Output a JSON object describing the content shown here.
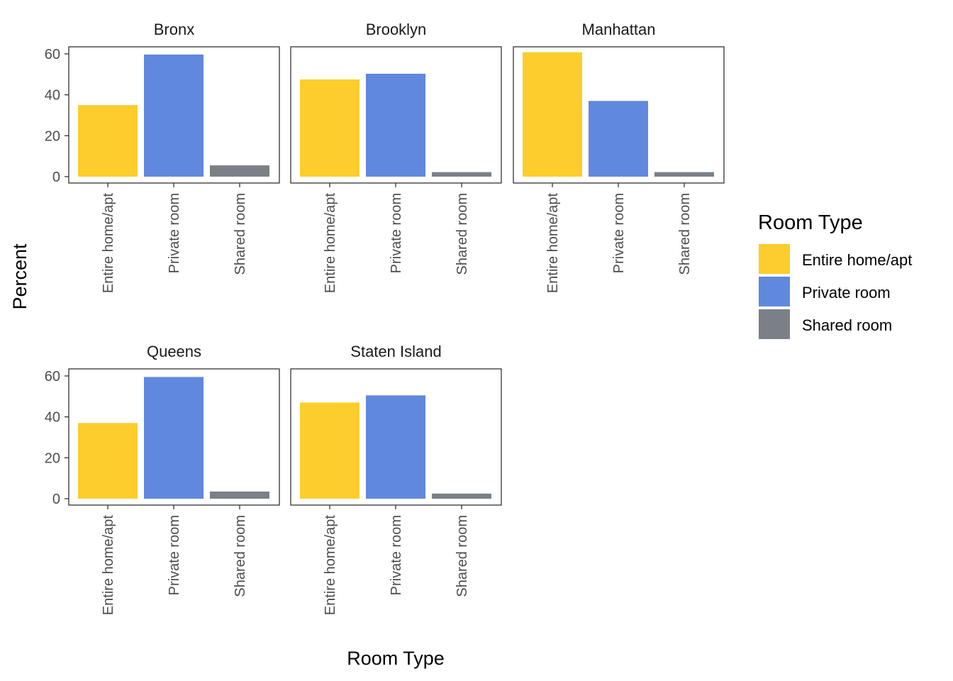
{
  "chart_data": {
    "type": "bar",
    "facet_by": "borough",
    "xlabel": "Room Type",
    "ylabel": "Percent",
    "ylim": [
      0,
      65
    ],
    "yticks": [
      0,
      20,
      40,
      60
    ],
    "categories": [
      "Entire home/apt",
      "Private room",
      "Shared room"
    ],
    "colors": {
      "Entire home/apt": "#FCCD2C",
      "Private room": "#6088DD",
      "Shared room": "#7B8087"
    },
    "legend": {
      "title": "Room Type",
      "position": "right",
      "entries": [
        "Entire home/apt",
        "Private room",
        "Shared room"
      ]
    },
    "panels": [
      {
        "name": "Bronx",
        "values": [
          35,
          59.7,
          5.5
        ]
      },
      {
        "name": "Brooklyn",
        "values": [
          47.5,
          50.3,
          2.2
        ]
      },
      {
        "name": "Manhattan",
        "values": [
          60.8,
          37,
          2.2
        ]
      },
      {
        "name": "Queens",
        "values": [
          37,
          59.5,
          3.5
        ]
      },
      {
        "name": "Staten Island",
        "values": [
          47,
          50.5,
          2.5
        ]
      }
    ]
  }
}
